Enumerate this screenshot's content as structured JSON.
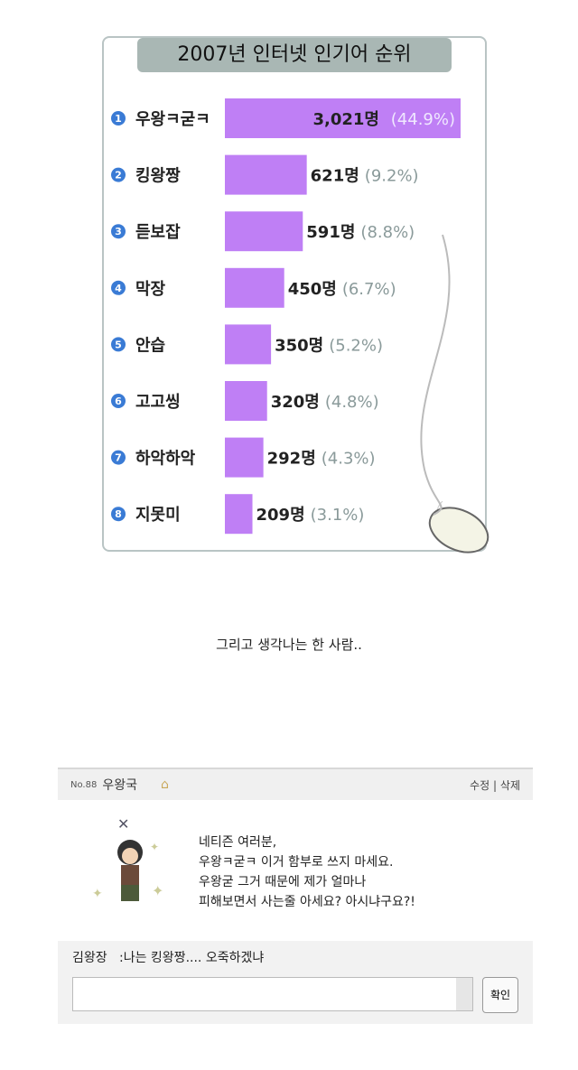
{
  "chart_data": {
    "type": "bar",
    "orientation": "horizontal",
    "title": "2007년 인터넷 인기어 순위",
    "categories": [
      "우왕ㅋ굳ㅋ",
      "킹왕짱",
      "듣보잡",
      "막장",
      "안습",
      "고고씽",
      "하악하악",
      "지못미"
    ],
    "ranks": [
      "1",
      "2",
      "3",
      "4",
      "5",
      "6",
      "7",
      "8"
    ],
    "values": [
      3021,
      621,
      591,
      450,
      350,
      320,
      292,
      209
    ],
    "value_labels": [
      "3,021명",
      "621명",
      "591명",
      "450명",
      "350명",
      "320명",
      "292명",
      "209명"
    ],
    "percent_labels": [
      "(44.9%)",
      "(9.2%)",
      "(8.8%)",
      "(6.7%)",
      "(5.2%)",
      "(4.8%)",
      "(4.3%)",
      "(3.1%)"
    ],
    "bar_color": "#bf7ff5",
    "rank_badge_color": "#3a7bd5"
  },
  "caption": "그리고 생각나는 한 사람..",
  "post": {
    "number": "No.88",
    "author": "우왕국",
    "edit": "수정",
    "separator": "|",
    "delete": "삭제",
    "message": "네티즌 여러분,\n우왕ㅋ굳ㅋ 이거 함부로 쓰지 마세요.\n우왕굳 그거 때문에 제가 얼마나\n피해보면서 사는줄 아세요? 아시냐구요?!",
    "comment_author": "김왕장",
    "comment_text": ":나는 킹왕짱.... 오죽하겠냐",
    "submit": "확인"
  }
}
